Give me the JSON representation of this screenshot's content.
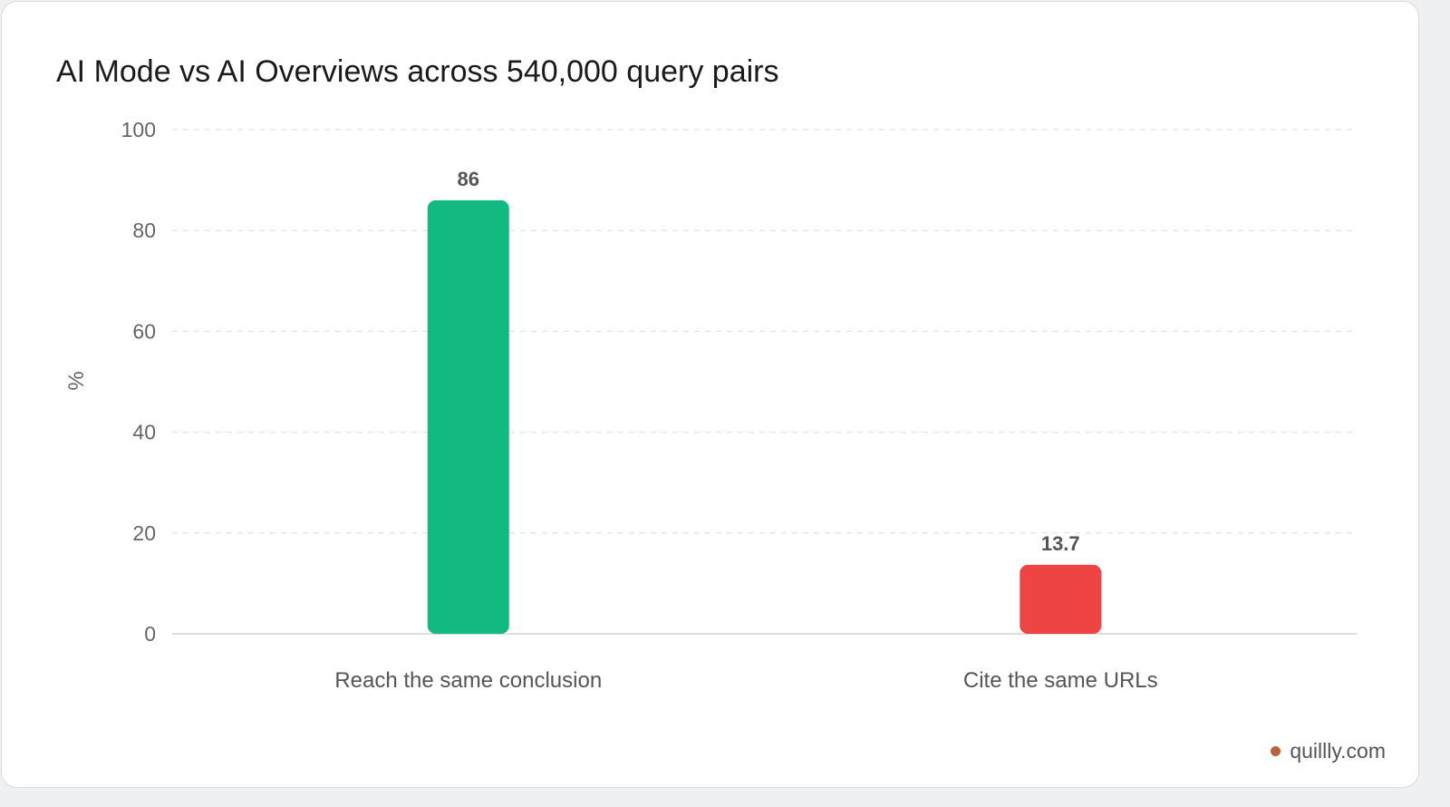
{
  "chart_data": {
    "type": "bar",
    "title": "AI Mode vs AI Overviews across 540,000 query pairs",
    "ylabel": "%",
    "xlabel": "",
    "ylim": [
      0,
      100
    ],
    "yticks": [
      "0",
      "20",
      "40",
      "60",
      "80",
      "100"
    ],
    "categories": [
      "Reach the same conclusion",
      "Cite the same URLs"
    ],
    "values": [
      86,
      13.7
    ],
    "value_labels": [
      "86",
      "13.7"
    ],
    "colors": [
      "#12b981",
      "#ef4444"
    ],
    "grid": true
  },
  "brand": {
    "text": "quillly.com",
    "dot_color": "#b5643d"
  }
}
